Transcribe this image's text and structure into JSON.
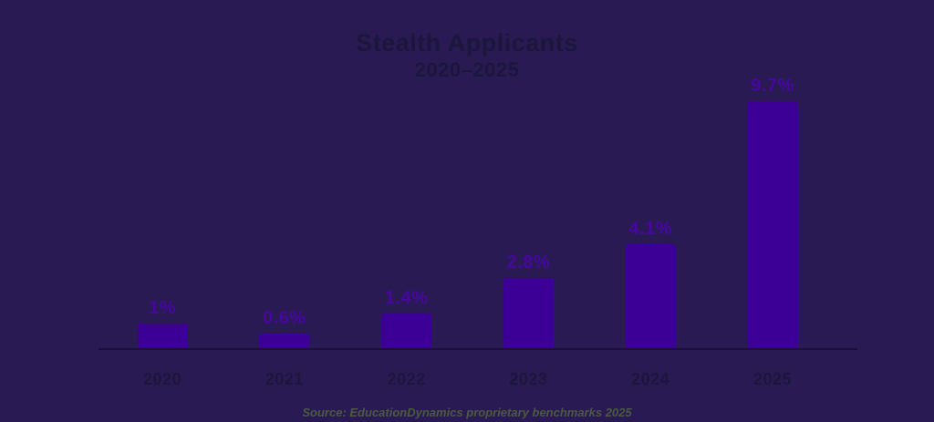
{
  "chart": {
    "title": "Stealth Applicants",
    "subtitle": "2020–2025",
    "source": "Source: EducationDynamics proprietary benchmarks 2025"
  },
  "chart_data": {
    "type": "bar",
    "title": "Stealth Applicants",
    "subtitle": "2020–2025",
    "categories": [
      "2020",
      "2021",
      "2022",
      "2023",
      "2024",
      "2025"
    ],
    "values": [
      1,
      0.6,
      1.4,
      2.8,
      4.1,
      9.7
    ],
    "value_labels": [
      "1%",
      "0.6%",
      "1.4%",
      "2.8%",
      "4.1%",
      "9.7%"
    ],
    "xlabel": "",
    "ylabel": "",
    "ylim": [
      0,
      10.5
    ],
    "grid": false,
    "legend": false,
    "source": "Source: EducationDynamics proprietary benchmarks 2025",
    "colors": {
      "background": "#2a1a53",
      "bar": "#3d0097",
      "value_label": "#45079f",
      "axis_text": "#1b163b",
      "axis_line": "#1c0f3d",
      "source_text": "#4b5a40"
    }
  }
}
